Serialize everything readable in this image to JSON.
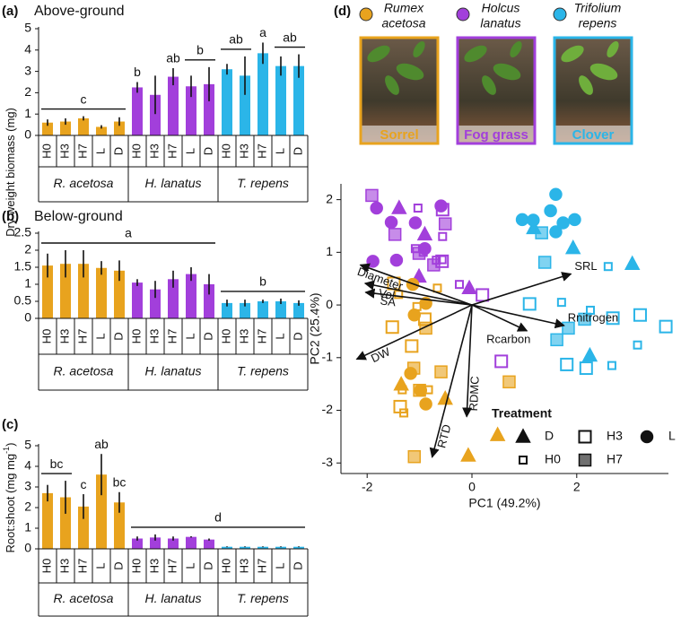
{
  "chart_data": [
    {
      "type": "bar",
      "panel": "(a)",
      "title": "Above-ground",
      "y_label": "Dry weight biomass (mg)",
      "categories": [
        "H0",
        "H3",
        "H7",
        "L",
        "D"
      ],
      "series": [
        {
          "name": "R. acetosa",
          "color": "#E8A31E",
          "values": [
            0.6,
            0.65,
            0.8,
            0.4,
            0.65
          ],
          "errors": [
            0.15,
            0.15,
            0.1,
            0.08,
            0.2
          ]
        },
        {
          "name": "H. lanatus",
          "color": "#A23FDB",
          "values": [
            2.25,
            1.9,
            2.75,
            2.3,
            2.4
          ],
          "errors": [
            0.25,
            0.9,
            0.4,
            0.5,
            0.8
          ]
        },
        {
          "name": "T. repens",
          "color": "#2BB5E8",
          "values": [
            3.1,
            2.8,
            3.85,
            3.25,
            3.25
          ],
          "errors": [
            0.25,
            0.9,
            0.5,
            0.45,
            0.55
          ]
        }
      ],
      "ylim": [
        0,
        5
      ],
      "yticks": [
        0,
        1,
        2,
        3,
        4,
        5
      ],
      "annotations": [
        {
          "text": "c",
          "from": 0,
          "to": 4
        },
        {
          "text": "b",
          "from": 5,
          "to": 5
        },
        {
          "text": "ab",
          "from": 7,
          "to": 7
        },
        {
          "text": "b",
          "from": 8,
          "to": 9
        },
        {
          "text": "ab",
          "from": 10,
          "to": 11
        },
        {
          "text": "a",
          "from": 12,
          "to": 12
        },
        {
          "text": "ab",
          "from": 13,
          "to": 14
        }
      ]
    },
    {
      "type": "bar",
      "panel": "(b)",
      "title": "Below-ground",
      "categories": [
        "H0",
        "H3",
        "H7",
        "L",
        "D"
      ],
      "series": [
        {
          "name": "R. acetosa",
          "color": "#E8A31E",
          "values": [
            1.55,
            1.6,
            1.6,
            1.48,
            1.4
          ],
          "errors": [
            0.35,
            0.4,
            0.4,
            0.2,
            0.3
          ]
        },
        {
          "name": "H. lanatus",
          "color": "#A23FDB",
          "values": [
            1.05,
            0.85,
            1.15,
            1.3,
            1.0
          ],
          "errors": [
            0.1,
            0.25,
            0.25,
            0.2,
            0.3
          ]
        },
        {
          "name": "T. repens",
          "color": "#2BB5E8",
          "values": [
            0.45,
            0.45,
            0.5,
            0.5,
            0.45
          ],
          "errors": [
            0.1,
            0.1,
            0.05,
            0.08,
            0.08
          ]
        }
      ],
      "ylim": [
        0,
        2.5
      ],
      "yticks": [
        0,
        0.5,
        1,
        1.5,
        2,
        2.5
      ],
      "annotations": [
        {
          "text": "a",
          "from": 0,
          "to": 9
        },
        {
          "text": "b",
          "from": 10,
          "to": 14
        }
      ]
    },
    {
      "type": "bar",
      "panel": "(c)",
      "y_label": "Root:shoot (mg mg",
      "y_label_sup": "-1",
      "y_label_end": ")",
      "categories": [
        "H0",
        "H3",
        "H7",
        "L",
        "D"
      ],
      "series": [
        {
          "name": "R. acetosa",
          "color": "#E8A31E",
          "values": [
            2.7,
            2.5,
            2.05,
            3.6,
            2.25
          ],
          "errors": [
            0.4,
            0.8,
            0.6,
            1.0,
            0.5
          ]
        },
        {
          "name": "H. lanatus",
          "color": "#A23FDB",
          "values": [
            0.5,
            0.55,
            0.5,
            0.58,
            0.45
          ],
          "errors": [
            0.1,
            0.15,
            0.1,
            0.03,
            0.05
          ]
        },
        {
          "name": "T. repens",
          "color": "#2BB5E8",
          "values": [
            0.1,
            0.1,
            0.1,
            0.1,
            0.1
          ],
          "errors": [
            0.02,
            0.02,
            0.02,
            0.02,
            0.02
          ]
        }
      ],
      "ylim": [
        0,
        5
      ],
      "yticks": [
        0,
        1,
        2,
        3,
        4,
        5
      ],
      "annotations": [
        {
          "text": "bc",
          "from": 0,
          "to": 1
        },
        {
          "text": "c",
          "from": 2,
          "to": 2
        },
        {
          "text": "ab",
          "from": 3,
          "to": 3
        },
        {
          "text": "bc",
          "from": 4,
          "to": 4
        },
        {
          "text": "d",
          "from": 5,
          "to": 14
        }
      ]
    },
    {
      "type": "scatter",
      "panel": "(d)",
      "species": [
        {
          "name_lines": [
            "Rumex",
            "acetosa"
          ],
          "common": "Sorrel",
          "color": "#E8A31E"
        },
        {
          "name_lines": [
            "Holcus",
            "lanatus"
          ],
          "common": "Fog grass",
          "color": "#A23FDB"
        },
        {
          "name_lines": [
            "Trifolium",
            "repens"
          ],
          "common": "Clover",
          "color": "#2BB5E8"
        }
      ],
      "x_label": "PC1 (49.2%)",
      "y_label": "PC2 (25.4%)",
      "xlim": [
        -2.5,
        3.75
      ],
      "ylim": [
        -3.2,
        2.3
      ],
      "xticks": [
        -2,
        0,
        2
      ],
      "yticks": [
        -3,
        -2,
        -1,
        0,
        1,
        2
      ],
      "vectors": [
        {
          "label": "SRL",
          "x": 1.89,
          "y": 0.59
        },
        {
          "label": "Rnitrogen",
          "x": 1.76,
          "y": -0.39
        },
        {
          "label": "Rcarbon",
          "x": 1.05,
          "y": -0.49
        },
        {
          "label": "RDMC",
          "x": -0.1,
          "y": -2.12
        },
        {
          "label": "RTD",
          "x": -0.76,
          "y": -2.89
        },
        {
          "label": "DW",
          "x": -2.2,
          "y": -1.03
        },
        {
          "label": "Diameter",
          "x": -2.13,
          "y": 0.76
        },
        {
          "label": "Vol",
          "x": -2.04,
          "y": 0.41
        },
        {
          "label": "SA",
          "x": -2.03,
          "y": 0.24
        }
      ],
      "legend_title": "Treatment",
      "series": [
        {
          "name": "D",
          "marker": "triangle",
          "filled": true,
          "x": [
            -1.39,
            -0.9,
            -1.01,
            -0.05,
            -1.35,
            -0.51,
            0.49,
            -0.07,
            1.18,
            1.93,
            2.25,
            3.06
          ],
          "y": [
            1.84,
            1.34,
            0.54,
            0.32,
            -1.51,
            -1.78,
            -2.47,
            -2.86,
            1.46,
            1.08,
            -0.96,
            0.78
          ],
          "group": [
            1,
            1,
            1,
            1,
            0,
            0,
            0,
            0,
            2,
            2,
            2,
            2
          ]
        },
        {
          "name": "H3",
          "marker": "square",
          "filled": false,
          "x": [
            -0.56,
            -0.57,
            0.2,
            0.56,
            -1.49,
            -0.9,
            -1.15,
            -1.52,
            -1.37,
            1.1,
            2.69,
            3.21,
            3.7,
            1.81,
            2.18
          ],
          "y": [
            1.81,
            0.83,
            0.19,
            -1.07,
            0.41,
            -0.27,
            -0.78,
            -0.42,
            -1.93,
            0.02,
            -0.25,
            -0.19,
            -0.41,
            -1.13,
            -1.2
          ],
          "group": [
            1,
            1,
            1,
            1,
            0,
            0,
            0,
            0,
            0,
            2,
            2,
            2,
            2,
            2,
            2
          ]
        },
        {
          "name": "L",
          "marker": "circle",
          "filled": true,
          "x": [
            -1.82,
            -1.54,
            -0.59,
            -1.08,
            -0.9,
            -1.89,
            -1.44,
            -1.13,
            -0.88,
            -1.1,
            -0.98,
            -0.88,
            -1.17,
            1.6,
            0.96,
            1.5,
            1.74,
            1.17,
            1.96,
            1.6
          ],
          "y": [
            1.84,
            1.57,
            1.88,
            1.56,
            1.07,
            0.83,
            0.85,
            0.39,
            0.03,
            -0.19,
            -1.62,
            -1.88,
            -1.3,
            2.1,
            1.62,
            1.79,
            1.56,
            1.61,
            1.62,
            1.39
          ],
          "group": [
            1,
            1,
            1,
            1,
            1,
            1,
            1,
            0,
            0,
            0,
            0,
            0,
            0,
            2,
            2,
            2,
            2,
            2,
            2,
            2
          ]
        },
        {
          "name": "H0",
          "marker": "small-square",
          "filled": false,
          "x": [
            -1.03,
            -0.56,
            -1.08,
            -0.93,
            -0.68,
            -0.57,
            -0.24,
            -1.4,
            -1.05,
            -0.66,
            -1.33,
            -1.3,
            -0.83,
            2.6,
            1.71,
            2.26,
            3.16,
            2.67
          ],
          "y": [
            1.84,
            1.3,
            1.07,
            1.0,
            0.85,
            0.86,
            0.39,
            0.2,
            -0.03,
            0.32,
            -1.61,
            -2.05,
            -1.61,
            0.73,
            0.05,
            -0.1,
            -0.76,
            -1.15
          ],
          "group": [
            1,
            1,
            1,
            1,
            1,
            1,
            1,
            0,
            0,
            0,
            0,
            0,
            0,
            2,
            2,
            2,
            2,
            2
          ]
        },
        {
          "name": "H7",
          "marker": "square",
          "filled": true,
          "x": [
            -1.91,
            -1.47,
            -1.01,
            -0.51,
            -0.73,
            -1.11,
            -1.0,
            -0.59,
            -0.88,
            0.71,
            -1.1,
            1.33,
            1.39,
            2.15,
            1.62,
            1.84
          ],
          "y": [
            2.08,
            1.34,
            0.98,
            1.54,
            0.76,
            -1.2,
            -1.62,
            -1.27,
            -0.44,
            -1.46,
            -2.88,
            1.37,
            0.81,
            -0.27,
            -0.66,
            -0.44
          ],
          "group": [
            1,
            1,
            1,
            1,
            1,
            0,
            0,
            0,
            0,
            0,
            0,
            2,
            2,
            2,
            2,
            2
          ]
        }
      ]
    }
  ]
}
